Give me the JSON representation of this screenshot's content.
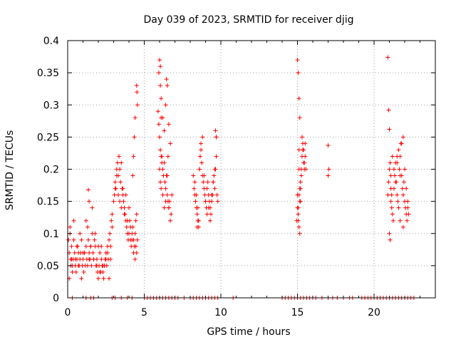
{
  "chart_data": {
    "type": "scatter",
    "title": "Day 039 of 2023, SRMTID for receiver djig",
    "xlabel": "GPS time / hours",
    "ylabel": "SRMTID / TECUs",
    "xlim": [
      0,
      24
    ],
    "ylim": [
      0,
      0.4
    ],
    "xticks": [
      0,
      5,
      10,
      15,
      20
    ],
    "xtick_labels": [
      "0",
      "5",
      "10",
      "15",
      "20"
    ],
    "yticks": [
      0,
      0.05,
      0.1,
      0.15,
      0.2,
      0.25,
      0.3,
      0.35,
      0.4
    ],
    "ytick_labels": [
      "0",
      "0.05",
      "0.1",
      "0.15",
      "0.2",
      "0.25",
      "0.3",
      "0.35",
      "0.4"
    ],
    "grid": true,
    "marker": "+",
    "color": "#ff0000",
    "series": [
      {
        "x": [
          0.05,
          0.1,
          0.15,
          0.2,
          0.25,
          0.3,
          0.35,
          0.4,
          0.45,
          0.5,
          0.55,
          0.6,
          0.65,
          0.7,
          0.75,
          0.8,
          0.85,
          0.9,
          0.95,
          1.0,
          1.05,
          1.1,
          1.15,
          1.2,
          1.25,
          1.3,
          1.35,
          1.4,
          1.45,
          1.5,
          1.55,
          1.6,
          1.65,
          1.7,
          1.75,
          1.8,
          1.85,
          1.9,
          1.95,
          2.0,
          2.05,
          2.1,
          2.15,
          2.2,
          2.25,
          2.3,
          2.35,
          2.4,
          2.45,
          2.5,
          2.55,
          2.6,
          2.65,
          2.7,
          2.75,
          2.8,
          2.85,
          2.9,
          0.1,
          0.2,
          0.3,
          0.5,
          0.7,
          0.9,
          1.1,
          1.3,
          1.5,
          1.7,
          1.9,
          2.1,
          2.3,
          2.5,
          2.7,
          1.35,
          1.4,
          1.6,
          0.15,
          0.4,
          0.8,
          1.2,
          1.8,
          2.2,
          2.6,
          0.25,
          0.6,
          1.0,
          1.4,
          2.0,
          2.4,
          2.8
        ],
        "y": [
          0.09,
          0.07,
          0.1,
          0.06,
          0.08,
          0.05,
          0.06,
          0.09,
          0.07,
          0.05,
          0.04,
          0.06,
          0.08,
          0.07,
          0.05,
          0.06,
          0.07,
          0.09,
          0.05,
          0.06,
          0.04,
          0.07,
          0.05,
          0.08,
          0.06,
          0.11,
          0.09,
          0.07,
          0.06,
          0.08,
          0.05,
          0.1,
          0.07,
          0.06,
          0.09,
          0.08,
          0.05,
          0.06,
          0.04,
          0.03,
          0.05,
          0.07,
          0.04,
          0.06,
          0.05,
          0.04,
          0.03,
          0.05,
          0.06,
          0.07,
          0.05,
          0.08,
          0.06,
          0.09,
          0.1,
          0.08,
          0.12,
          0.11,
          0.03,
          0.05,
          0.04,
          0.06,
          0.05,
          0.03,
          0.07,
          0.05,
          0.08,
          0.06,
          0.05,
          0.04,
          0.05,
          0.06,
          0.03,
          0.168,
          0.15,
          0.14,
          0.11,
          0.12,
          0.1,
          0.12,
          0.1,
          0.08,
          0.07,
          0.06,
          0.08,
          0.07,
          0.06,
          0.08,
          0.05,
          0.06
        ]
      },
      {
        "x": [
          2.9,
          3.0,
          3.05,
          3.1,
          3.15,
          3.2,
          3.25,
          3.3,
          3.35,
          3.4,
          3.45,
          3.5,
          3.55,
          3.6,
          3.65,
          3.7,
          3.75,
          3.8,
          3.85,
          3.9,
          3.95,
          4.0,
          4.05,
          4.1,
          4.15,
          4.2,
          4.25,
          4.3,
          4.35,
          4.4,
          4.45,
          4.5,
          4.55,
          3.1,
          3.2,
          3.3,
          3.4,
          3.5,
          3.6,
          3.7,
          3.8,
          3.9,
          4.0,
          4.1,
          4.2,
          4.3,
          4.4,
          4.45,
          4.5,
          4.5,
          4.52,
          4.55,
          4.4,
          4.35,
          4.3,
          4.25
        ],
        "y": [
          0.13,
          0.15,
          0.16,
          0.18,
          0.17,
          0.2,
          0.21,
          0.19,
          0.22,
          0.2,
          0.18,
          0.21,
          0.17,
          0.16,
          0.15,
          0.14,
          0.13,
          0.12,
          0.11,
          0.1,
          0.09,
          0.1,
          0.12,
          0.09,
          0.08,
          0.1,
          0.11,
          0.09,
          0.08,
          0.1,
          0.12,
          0.13,
          0.09,
          0.17,
          0.19,
          0.16,
          0.15,
          0.14,
          0.17,
          0.13,
          0.16,
          0.12,
          0.14,
          0.11,
          0.09,
          0.07,
          0.06,
          0.08,
          0.07,
          0.33,
          0.32,
          0.3,
          0.28,
          0.25,
          0.22,
          0.19
        ]
      },
      {
        "x": [
          5.9,
          5.95,
          6.0,
          6.05,
          6.1,
          6.15,
          6.2,
          6.25,
          6.3,
          6.35,
          6.4,
          6.45,
          6.5,
          6.55,
          6.6,
          6.65,
          6.7,
          6.75,
          5.95,
          6.0,
          6.05,
          6.1,
          6.2,
          6.3,
          6.4,
          6.5,
          6.6,
          6.7,
          6.8,
          6.0,
          6.05,
          6.1,
          6.15,
          6.2,
          6.3,
          6.4,
          6.5,
          6.45,
          6.55,
          6.05,
          6.1,
          6.6
        ],
        "y": [
          0.29,
          0.27,
          0.25,
          0.23,
          0.22,
          0.21,
          0.2,
          0.19,
          0.21,
          0.18,
          0.17,
          0.19,
          0.16,
          0.15,
          0.14,
          0.15,
          0.12,
          0.13,
          0.35,
          0.37,
          0.33,
          0.31,
          0.28,
          0.26,
          0.3,
          0.33,
          0.27,
          0.24,
          0.16,
          0.2,
          0.18,
          0.17,
          0.22,
          0.16,
          0.14,
          0.15,
          0.19,
          0.34,
          0.22,
          0.36,
          0.28,
          0.14
        ]
      },
      {
        "x": [
          8.2,
          8.25,
          8.3,
          8.35,
          8.4,
          8.45,
          8.5,
          8.55,
          8.6,
          8.65,
          8.7,
          8.75,
          8.8,
          8.85,
          8.9,
          8.95,
          9.0,
          9.05,
          9.1,
          9.15,
          9.2,
          9.25,
          9.3,
          9.35,
          9.4,
          9.45,
          9.5,
          9.55,
          9.6,
          9.65,
          9.7,
          9.75,
          9.8,
          8.3,
          8.4,
          8.5,
          8.6,
          8.7,
          8.8,
          8.9,
          9.0,
          9.1,
          9.2,
          9.3,
          9.4,
          9.5,
          9.6,
          9.7,
          8.45,
          8.55,
          9.65,
          9.7
        ],
        "y": [
          0.19,
          0.17,
          0.16,
          0.15,
          0.14,
          0.13,
          0.12,
          0.11,
          0.2,
          0.22,
          0.24,
          0.21,
          0.19,
          0.18,
          0.17,
          0.16,
          0.15,
          0.14,
          0.17,
          0.18,
          0.16,
          0.15,
          0.14,
          0.13,
          0.15,
          0.16,
          0.18,
          0.19,
          0.17,
          0.2,
          0.22,
          0.16,
          0.15,
          0.18,
          0.16,
          0.14,
          0.2,
          0.23,
          0.25,
          0.19,
          0.15,
          0.13,
          0.14,
          0.12,
          0.16,
          0.18,
          0.2,
          0.25,
          0.11,
          0.12,
          0.26,
          0.25
        ]
      },
      {
        "x": [
          14.95,
          15.0,
          15.05,
          15.1,
          15.15,
          15.2,
          15.25,
          15.3,
          15.35,
          15.4,
          15.45,
          15.5,
          15.55,
          15.0,
          15.05,
          15.1,
          15.15,
          15.2,
          15.25,
          15.3,
          15.35,
          15.4,
          15.45,
          15.5,
          15.05,
          15.1,
          15.15,
          15.2,
          15.0,
          15.05,
          15.1,
          15.1,
          15.15,
          17.0,
          17.05,
          17.0
        ],
        "y": [
          0.12,
          0.14,
          0.13,
          0.16,
          0.17,
          0.15,
          0.2,
          0.22,
          0.24,
          0.23,
          0.21,
          0.22,
          0.2,
          0.37,
          0.35,
          0.31,
          0.28,
          0.18,
          0.19,
          0.25,
          0.23,
          0.21,
          0.2,
          0.24,
          0.12,
          0.11,
          0.1,
          0.17,
          0.16,
          0.14,
          0.2,
          0.23,
          0.15,
          0.237,
          0.2,
          0.19
        ]
      },
      {
        "x": [
          20.9,
          20.95,
          21.0,
          21.05,
          21.1,
          21.15,
          21.2,
          21.25,
          21.3,
          21.35,
          21.4,
          21.45,
          21.5,
          21.55,
          21.6,
          21.65,
          21.7,
          21.75,
          21.8,
          21.85,
          21.9,
          21.95,
          22.0,
          22.05,
          22.1,
          22.15,
          22.2,
          22.25,
          21.0,
          21.05,
          21.1,
          21.15,
          21.2,
          21.3,
          21.4,
          21.5,
          21.6,
          21.7,
          21.8,
          21.9,
          22.0,
          22.1,
          22.2,
          20.9,
          20.95,
          21.0,
          21.1,
          21.5,
          21.7,
          21.9
        ],
        "y": [
          0.16,
          0.18,
          0.2,
          0.21,
          0.15,
          0.14,
          0.13,
          0.12,
          0.17,
          0.19,
          0.21,
          0.18,
          0.16,
          0.15,
          0.14,
          0.2,
          0.22,
          0.24,
          0.19,
          0.17,
          0.16,
          0.18,
          0.15,
          0.14,
          0.13,
          0.12,
          0.14,
          0.13,
          0.1,
          0.09,
          0.17,
          0.16,
          0.22,
          0.2,
          0.18,
          0.21,
          0.23,
          0.19,
          0.24,
          0.25,
          0.2,
          0.17,
          0.15,
          0.374,
          0.292,
          0.262,
          0.19,
          0.22,
          0.12,
          0.11
        ]
      },
      {
        "x": [
          0.3,
          1.2,
          1.5,
          1.7,
          2.9,
          3.1,
          3.5,
          3.9,
          4.2,
          5.0,
          5.2,
          5.4,
          5.6,
          5.8,
          6.0,
          6.2,
          6.4,
          6.6,
          6.8,
          7.0,
          7.2,
          7.6,
          8.0,
          8.2,
          8.4,
          8.6,
          8.8,
          9.0,
          9.2,
          9.4,
          9.6,
          9.8,
          10.8,
          14.0,
          14.2,
          14.4,
          14.6,
          14.8,
          15.0,
          15.2,
          15.4,
          15.6,
          15.8,
          16.0,
          16.2,
          16.6,
          17.0,
          17.3,
          17.6,
          18.0,
          18.4,
          18.6,
          19.2,
          19.4,
          19.6,
          19.8,
          20.0,
          20.2,
          20.4,
          20.6,
          20.8,
          21.0,
          21.2,
          21.4,
          21.6,
          21.8,
          22.0,
          22.2,
          22.4,
          22.6
        ],
        "y": [
          0,
          0,
          0,
          0,
          0,
          0,
          0,
          0,
          0,
          0,
          0,
          0,
          0,
          0,
          0,
          0,
          0,
          0,
          0,
          0,
          0,
          0,
          0,
          0,
          0,
          0,
          0,
          0,
          0,
          0,
          0,
          0,
          0,
          0,
          0,
          0,
          0,
          0,
          0,
          0,
          0,
          0,
          0,
          0,
          0,
          0,
          0,
          0,
          0,
          0,
          0,
          0,
          0,
          0,
          0,
          0,
          0,
          0,
          0,
          0,
          0,
          0,
          0,
          0,
          0,
          0,
          0,
          0,
          0,
          0
        ]
      }
    ]
  }
}
